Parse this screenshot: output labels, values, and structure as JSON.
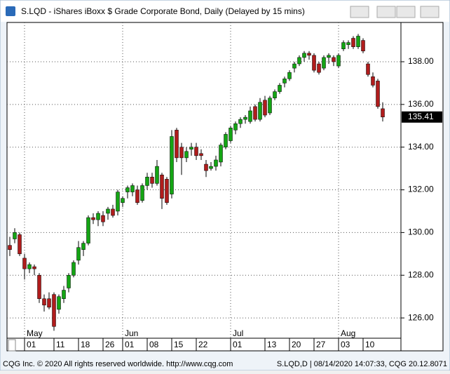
{
  "chart_data": {
    "type": "candlestick",
    "title": "S.LQD - iShares iBoxx $ Grade Corporate Bond, Daily (Delayed by 15 mins)",
    "footer_left": "CQG Inc. © 2020 All rights reserved worldwide. http://www.cqg.com",
    "footer_right": "S.LQD,D | 08/14/2020 14:07:33, CQG 20.12.8071",
    "categories": [
      null,
      null,
      null,
      "01",
      null,
      null,
      null,
      null,
      null,
      "11",
      null,
      null,
      null,
      null,
      "18",
      null,
      null,
      null,
      null,
      "26",
      null,
      null,
      null,
      "01",
      null,
      null,
      null,
      null,
      "08",
      null,
      null,
      null,
      null,
      "15",
      null,
      null,
      null,
      null,
      "22",
      null,
      null,
      null,
      null,
      null,
      null,
      "01",
      null,
      null,
      null,
      null,
      null,
      null,
      "13",
      null,
      null,
      null,
      null,
      "20",
      null,
      null,
      null,
      null,
      "27",
      null,
      null,
      null,
      null,
      "03",
      null,
      null,
      null,
      null,
      "10",
      null,
      null,
      null,
      null
    ],
    "month_labels": [
      {
        "label": "May",
        "category": 3
      },
      {
        "label": "Jun",
        "category": 23
      },
      {
        "label": "Jul",
        "category": 45
      },
      {
        "label": "Aug",
        "category": 67
      }
    ],
    "open": [
      129.4,
      129.7,
      129.9,
      128.8,
      128.3,
      128.4,
      128.0,
      126.9,
      126.9,
      127.1,
      126.4,
      126.9,
      127.4,
      128.0,
      128.7,
      129.2,
      129.5,
      130.7,
      130.6,
      130.8,
      130.9,
      131.1,
      131.0,
      131.4,
      131.9,
      131.9,
      132.0,
      131.5,
      132.2,
      132.6,
      132.3,
      132.7,
      132.5,
      131.8,
      134.8,
      134.0,
      133.5,
      133.9,
      134.0,
      133.7,
      133.2,
      133.0,
      133.1,
      133.3,
      134.0,
      134.3,
      134.8,
      135.1,
      135.3,
      135.2,
      135.9,
      135.3,
      136.2,
      135.6,
      136.3,
      136.6,
      137.0,
      137.2,
      137.7,
      137.9,
      138.2,
      138.4,
      138.3,
      137.9,
      137.7,
      138.2,
      138.2,
      137.8,
      138.6,
      138.8,
      139.1,
      138.7,
      139.0,
      137.9,
      137.3,
      137.1,
      135.8
    ],
    "high": [
      129.8,
      130.2,
      130.0,
      129.0,
      128.6,
      128.5,
      128.1,
      127.1,
      127.2,
      127.2,
      127.1,
      127.5,
      128.1,
      128.7,
      129.6,
      129.6,
      130.8,
      130.9,
      131.0,
      131.0,
      131.2,
      131.3,
      132.0,
      131.7,
      132.2,
      132.3,
      132.2,
      132.3,
      132.8,
      132.8,
      133.4,
      132.8,
      132.6,
      134.8,
      134.9,
      134.2,
      134.0,
      134.2,
      134.2,
      133.9,
      133.4,
      133.3,
      133.6,
      134.2,
      134.7,
      135.0,
      135.2,
      135.4,
      135.5,
      135.9,
      136.0,
      136.3,
      136.4,
      136.4,
      136.7,
      137.0,
      137.3,
      137.6,
      138.0,
      138.3,
      138.5,
      138.5,
      138.4,
      138.0,
      138.3,
      138.4,
      138.3,
      138.4,
      139.0,
      139.0,
      139.2,
      139.3,
      139.1,
      138.0,
      137.5,
      137.2,
      136.1
    ],
    "low": [
      128.9,
      129.5,
      128.9,
      127.8,
      128.1,
      128.0,
      126.7,
      126.3,
      126.4,
      125.4,
      126.2,
      126.7,
      127.2,
      127.9,
      128.5,
      128.9,
      129.4,
      130.4,
      130.3,
      130.3,
      130.6,
      130.7,
      130.8,
      131.2,
      131.6,
      131.7,
      131.3,
      131.4,
      132.0,
      132.1,
      132.2,
      131.1,
      131.3,
      131.6,
      133.3,
      132.7,
      133.3,
      133.6,
      133.4,
      133.4,
      132.6,
      132.9,
      132.9,
      133.1,
      133.9,
      134.2,
      134.6,
      134.9,
      135.1,
      135.1,
      135.2,
      135.2,
      135.4,
      135.5,
      136.2,
      136.5,
      136.8,
      137.1,
      137.5,
      137.8,
      138.0,
      138.1,
      137.5,
      137.4,
      137.6,
      137.9,
      137.8,
      137.7,
      138.5,
      138.6,
      138.6,
      138.6,
      138.4,
      137.3,
      136.8,
      135.8,
      135.2
    ],
    "close": [
      129.2,
      130.0,
      129.0,
      128.3,
      128.5,
      128.3,
      126.9,
      126.6,
      126.5,
      125.6,
      127.0,
      127.3,
      128.0,
      128.6,
      129.3,
      129.5,
      130.7,
      130.6,
      130.9,
      130.5,
      131.1,
      130.8,
      131.9,
      131.6,
      132.1,
      132.2,
      131.4,
      132.2,
      132.6,
      132.3,
      133.1,
      131.6,
      131.4,
      134.5,
      133.5,
      133.5,
      133.8,
      134.0,
      133.6,
      133.6,
      132.9,
      133.1,
      133.4,
      134.1,
      134.6,
      134.9,
      135.1,
      135.3,
      135.4,
      135.7,
      135.3,
      136.1,
      135.5,
      136.3,
      136.6,
      136.9,
      137.2,
      137.5,
      137.9,
      138.2,
      138.4,
      138.3,
      137.6,
      137.5,
      138.2,
      138.3,
      138.0,
      138.3,
      138.9,
      138.9,
      138.7,
      139.2,
      138.5,
      137.4,
      136.9,
      135.9,
      135.41
    ],
    "up_color": "#14a514",
    "down_color": "#b01c1c",
    "ylim": [
      125.05,
      139.84
    ],
    "yticks": [
      {
        "value": 126,
        "label": "126.00"
      },
      {
        "value": 128,
        "label": "128.00"
      },
      {
        "value": 130,
        "label": "130.00"
      },
      {
        "value": 132,
        "label": "132.00"
      },
      {
        "value": 134,
        "label": "134.00"
      },
      {
        "value": 136,
        "label": "136.00"
      },
      {
        "value": 138,
        "label": "138.00"
      }
    ],
    "grid": true
  }
}
